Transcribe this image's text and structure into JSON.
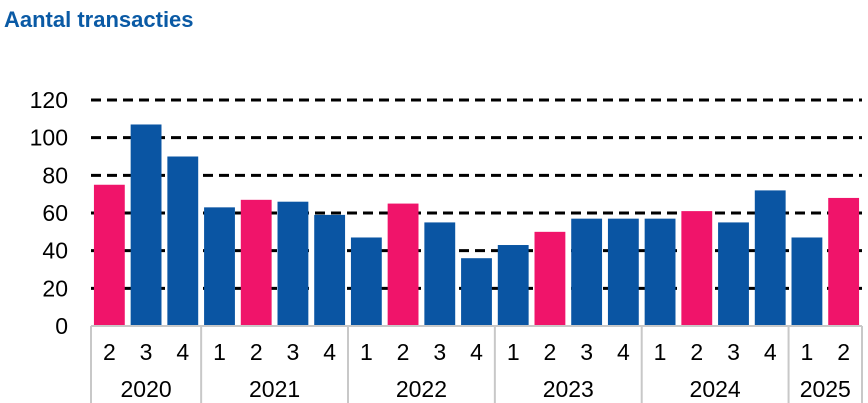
{
  "chart_data": {
    "type": "bar",
    "title": "Aantal transacties",
    "xlabel": "",
    "ylabel": "",
    "ylim": [
      0,
      120
    ],
    "yticks": [
      "0",
      "20",
      "40",
      "60",
      "80",
      "100",
      "120"
    ],
    "grid": "dashed horizontal",
    "legend": "none",
    "colors": {
      "blue": "#0a55a3",
      "pink": "#f0146a"
    },
    "years": [
      {
        "label": "2020",
        "count": 3
      },
      {
        "label": "2021",
        "count": 4
      },
      {
        "label": "2022",
        "count": 4
      },
      {
        "label": "2023",
        "count": 4
      },
      {
        "label": "2024",
        "count": 4
      },
      {
        "label": "2025",
        "count": 2
      }
    ],
    "categories": [
      "2",
      "3",
      "4",
      "1",
      "2",
      "3",
      "4",
      "1",
      "2",
      "3",
      "4",
      "1",
      "2",
      "3",
      "4",
      "1",
      "2",
      "3",
      "4",
      "1",
      "2"
    ],
    "values": [
      75,
      107,
      90,
      63,
      67,
      66,
      59,
      47,
      65,
      55,
      36,
      43,
      50,
      57,
      57,
      57,
      61,
      55,
      72,
      47,
      68
    ],
    "bar_colors": [
      "pink",
      "blue",
      "blue",
      "blue",
      "pink",
      "blue",
      "blue",
      "blue",
      "pink",
      "blue",
      "blue",
      "blue",
      "pink",
      "blue",
      "blue",
      "blue",
      "pink",
      "blue",
      "blue",
      "blue",
      "pink"
    ]
  }
}
